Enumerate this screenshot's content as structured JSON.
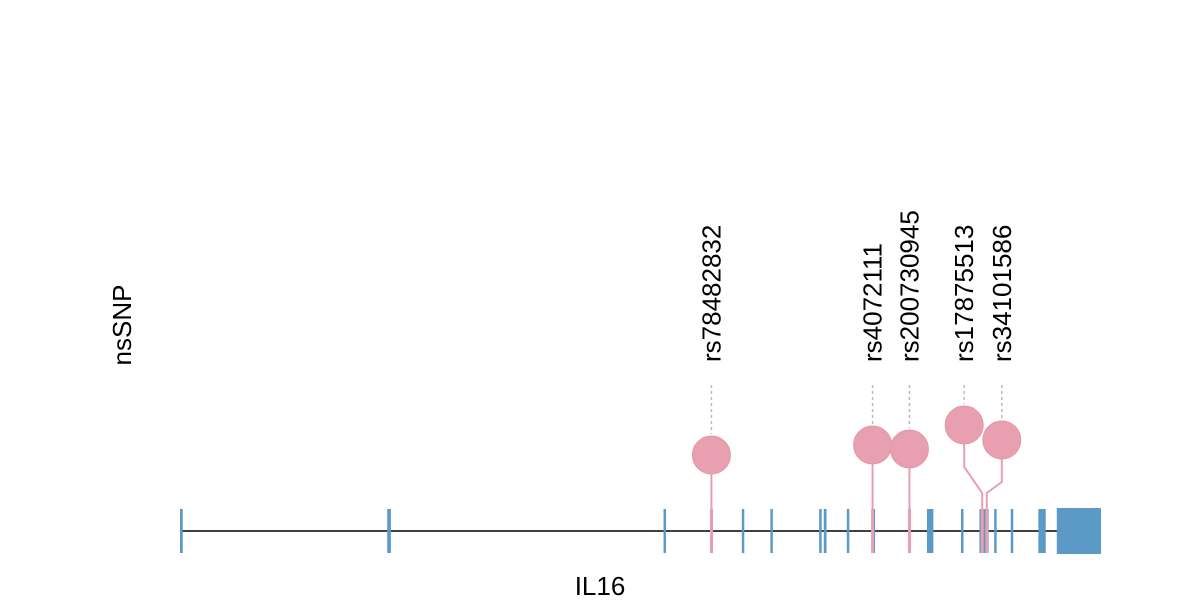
{
  "chart_data": {
    "type": "lollipop",
    "track_label": "nsSNP",
    "gene": {
      "name": "IL16",
      "range": [
        0,
        1000
      ],
      "exons": [
        {
          "start": 0,
          "end": 3
        },
        {
          "start": 225,
          "end": 229
        },
        {
          "start": 525,
          "end": 527
        },
        {
          "start": 576,
          "end": 578
        },
        {
          "start": 610,
          "end": 612
        },
        {
          "start": 641,
          "end": 643
        },
        {
          "start": 694,
          "end": 696
        },
        {
          "start": 699,
          "end": 702
        },
        {
          "start": 724,
          "end": 726
        },
        {
          "start": 752,
          "end": 754
        },
        {
          "start": 791,
          "end": 793
        },
        {
          "start": 811,
          "end": 818
        },
        {
          "start": 848,
          "end": 850
        },
        {
          "start": 868,
          "end": 878
        },
        {
          "start": 884,
          "end": 886
        },
        {
          "start": 902,
          "end": 904
        },
        {
          "start": 932,
          "end": 940
        },
        {
          "start": 952,
          "end": 1000
        }
      ]
    },
    "snps": [
      {
        "id": "rs78482832",
        "position": 577
      },
      {
        "id": "rs4072111",
        "position": 752
      },
      {
        "id": "rs200730945",
        "position": 792
      },
      {
        "id": "rs17875513",
        "position": 871
      },
      {
        "id": "rs34101586",
        "position": 876
      }
    ],
    "colors": {
      "exon": "#5B9AC6",
      "snp": "#E8A0B0",
      "stem": "#E8A0B0",
      "backbone": "#000000",
      "guide": "#BBBBBB"
    }
  }
}
